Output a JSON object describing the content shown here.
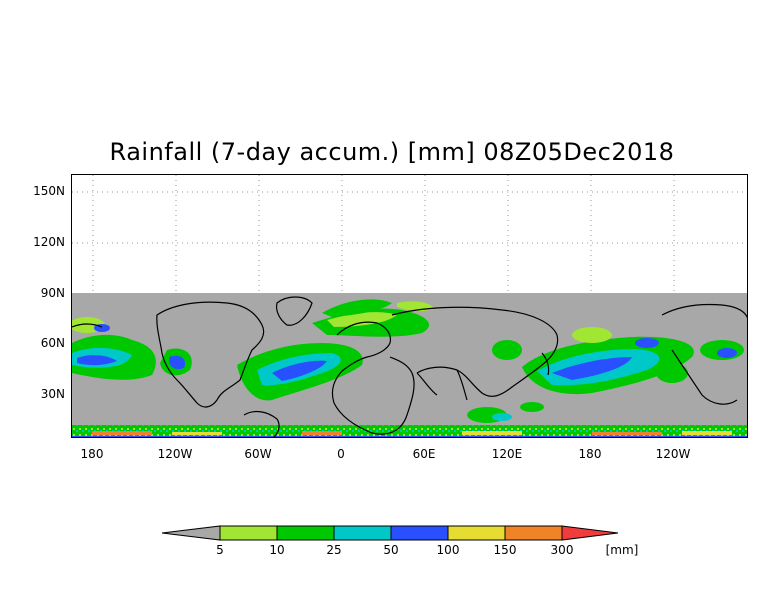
{
  "title": "Rainfall (7-day accum.) [mm] 08Z05Dec2018",
  "y_ticks": [
    "150N",
    "120N",
    "90N",
    "60N",
    "30N"
  ],
  "x_ticks": [
    "180",
    "120W",
    "60W",
    "0",
    "60E",
    "120E",
    "180",
    "120W"
  ],
  "colorbar": {
    "labels": [
      "5",
      "10",
      "25",
      "50",
      "100",
      "150",
      "300"
    ],
    "unit": "[mm]",
    "colors": [
      "#a8a8a8",
      "#a0e632",
      "#00c800",
      "#00c8c8",
      "#2850ff",
      "#e6dc32",
      "#f08228",
      "#f03c3c"
    ]
  },
  "colors": {
    "land_mask": "#a8a8a8",
    "coast": "#000000"
  }
}
